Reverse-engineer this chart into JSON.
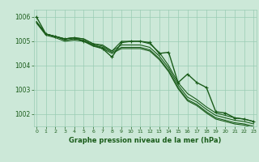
{
  "title": "Graphe pression niveau de la mer (hPa)",
  "hours": [
    0,
    1,
    2,
    3,
    4,
    5,
    6,
    7,
    8,
    9,
    10,
    11,
    12,
    13,
    14,
    15,
    16,
    17,
    18,
    19,
    20,
    21,
    22,
    23
  ],
  "main_y": [
    1006.0,
    1005.3,
    1005.2,
    1005.1,
    1005.15,
    1005.0,
    1004.85,
    1004.7,
    1004.35,
    1004.95,
    1005.0,
    1005.0,
    1004.95,
    1004.5,
    1004.55,
    1003.3,
    1003.65,
    1003.3,
    1003.1,
    1002.1,
    1002.05,
    1001.85,
    1001.8,
    1001.7
  ],
  "band_lines": [
    [
      1005.8,
      1005.3,
      1005.2,
      1005.1,
      1005.15,
      1005.1,
      1004.9,
      1004.85,
      1004.6,
      1005.0,
      1005.0,
      1005.0,
      1004.9,
      1004.55,
      1004.0,
      1003.3,
      1002.85,
      1002.6,
      1002.3,
      1002.05,
      1001.95,
      1001.85,
      1001.8,
      1001.7
    ],
    [
      1005.8,
      1005.3,
      1005.2,
      1005.1,
      1005.15,
      1005.1,
      1004.9,
      1004.8,
      1004.6,
      1004.85,
      1004.85,
      1004.85,
      1004.75,
      1004.4,
      1003.9,
      1003.2,
      1002.7,
      1002.5,
      1002.2,
      1001.95,
      1001.85,
      1001.75,
      1001.7,
      1001.6
    ],
    [
      1005.8,
      1005.3,
      1005.2,
      1005.05,
      1005.1,
      1005.05,
      1004.85,
      1004.75,
      1004.55,
      1004.75,
      1004.75,
      1004.75,
      1004.65,
      1004.3,
      1003.8,
      1003.1,
      1002.6,
      1002.4,
      1002.1,
      1001.85,
      1001.75,
      1001.65,
      1001.6,
      1001.5
    ],
    [
      1005.75,
      1005.25,
      1005.15,
      1005.0,
      1005.05,
      1005.0,
      1004.8,
      1004.7,
      1004.5,
      1004.7,
      1004.7,
      1004.7,
      1004.6,
      1004.25,
      1003.75,
      1003.05,
      1002.55,
      1002.35,
      1002.05,
      1001.8,
      1001.7,
      1001.6,
      1001.55,
      1001.45
    ]
  ],
  "bg_color": "#cce8d8",
  "grid_color": "#99ccb3",
  "line_color": "#1a5c1a",
  "text_color": "#1a5c1a",
  "ylim": [
    1001.5,
    1006.3
  ],
  "yticks": [
    1002,
    1003,
    1004,
    1005,
    1006
  ],
  "xlim": [
    -0.3,
    23.3
  ]
}
